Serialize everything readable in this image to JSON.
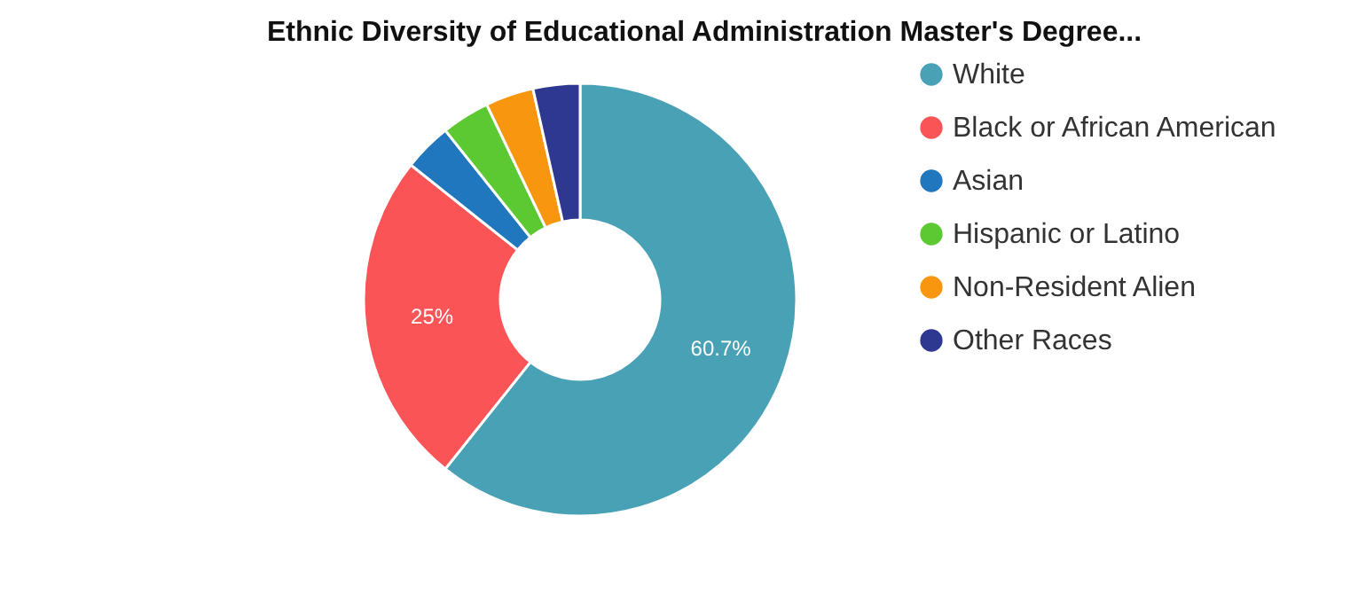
{
  "chart_data": {
    "type": "donut",
    "title": "Ethnic Diversity of Educational Administration Master's Degree...",
    "categories": [
      "White",
      "Black or African American",
      "Asian",
      "Hispanic or Latino",
      "Non-Resident Alien",
      "Other Races"
    ],
    "values": [
      60.7,
      25,
      3.6,
      3.6,
      3.6,
      3.5
    ],
    "colors": [
      "#49a1b5",
      "#fa5457",
      "#2177be",
      "#5dc932",
      "#f9960f",
      "#2e3890"
    ],
    "value_labels": [
      "60.7%",
      "25%",
      null,
      null,
      null,
      null
    ],
    "legend": "right"
  }
}
